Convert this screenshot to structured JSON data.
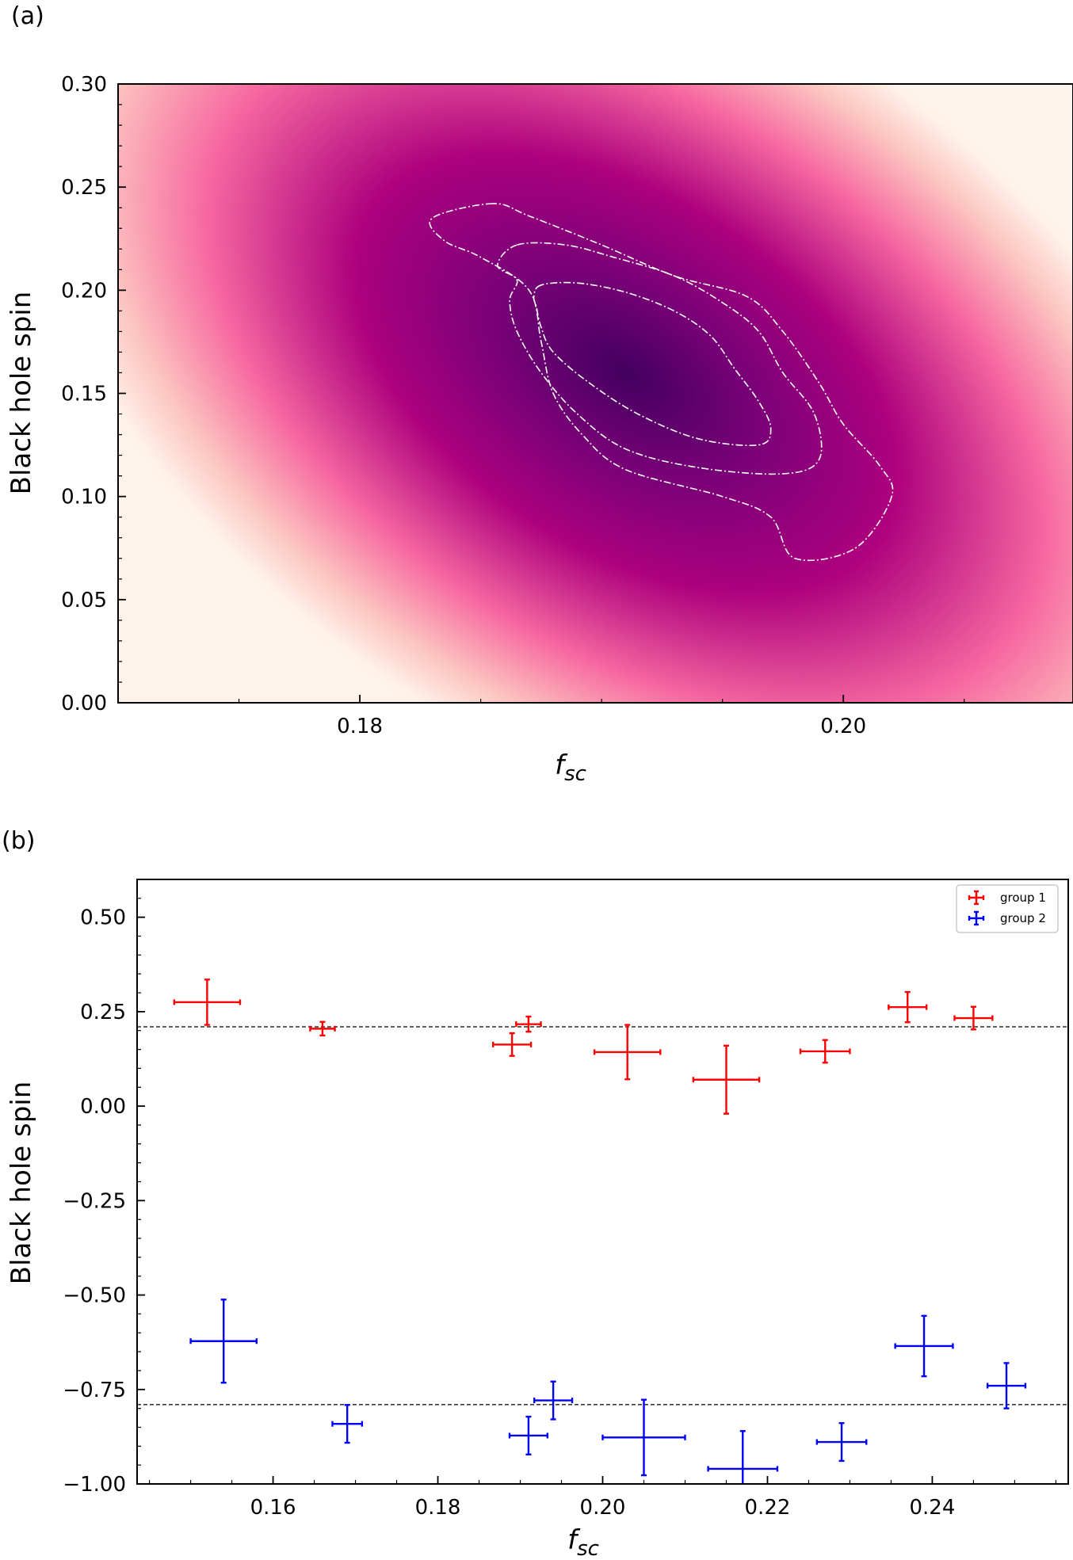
{
  "chart_data": [
    {
      "type": "heatmap",
      "panel_label": "(a)",
      "xlabel": "f",
      "xlabel_sub": "sc",
      "ylabel": "Black hole spin",
      "xlim": [
        0.17,
        0.2095
      ],
      "ylim": [
        0.0,
        0.3
      ],
      "xticks": [
        0.18,
        0.2
      ],
      "xtick_labels": [
        "0.18",
        "0.20"
      ],
      "yticks": [
        0.0,
        0.05,
        0.1,
        0.15,
        0.2,
        0.25,
        0.3
      ],
      "ytick_labels": [
        "0.00",
        "0.05",
        "0.10",
        "0.15",
        "0.20",
        "0.25",
        "0.30"
      ],
      "colormap": [
        "#43005f",
        "#7a0178",
        "#ae017e",
        "#f768a1",
        "#fcc5c0",
        "#fff3ea"
      ],
      "minimum": {
        "x": 0.191,
        "y": 0.16
      },
      "contours": [
        [
          [
            0.1875,
            0.2025
          ],
          [
            0.1872,
            0.197
          ],
          [
            0.1873,
            0.192
          ],
          [
            0.1875,
            0.182
          ],
          [
            0.188,
            0.17
          ],
          [
            0.1895,
            0.155
          ],
          [
            0.1915,
            0.14
          ],
          [
            0.194,
            0.128
          ],
          [
            0.1965,
            0.125
          ],
          [
            0.197,
            0.133
          ],
          [
            0.1965,
            0.146
          ],
          [
            0.1955,
            0.162
          ],
          [
            0.1945,
            0.178
          ],
          [
            0.193,
            0.19
          ],
          [
            0.191,
            0.199
          ],
          [
            0.189,
            0.2035
          ]
        ],
        [
          [
            0.1865,
            0.222
          ],
          [
            0.1857,
            0.212
          ],
          [
            0.1865,
            0.205
          ],
          [
            0.1862,
            0.195
          ],
          [
            0.1865,
            0.18
          ],
          [
            0.1875,
            0.16
          ],
          [
            0.189,
            0.14
          ],
          [
            0.191,
            0.123
          ],
          [
            0.194,
            0.114
          ],
          [
            0.1975,
            0.111
          ],
          [
            0.199,
            0.118
          ],
          [
            0.1988,
            0.14
          ],
          [
            0.1975,
            0.16
          ],
          [
            0.1965,
            0.18
          ],
          [
            0.195,
            0.194
          ],
          [
            0.193,
            0.207
          ],
          [
            0.1905,
            0.216
          ],
          [
            0.1885,
            0.222
          ]
        ],
        [
          [
            0.1855,
            0.242
          ],
          [
            0.183,
            0.235
          ],
          [
            0.1835,
            0.224
          ],
          [
            0.185,
            0.216
          ],
          [
            0.187,
            0.2
          ],
          [
            0.1875,
            0.175
          ],
          [
            0.188,
            0.15
          ],
          [
            0.1892,
            0.13
          ],
          [
            0.191,
            0.113
          ],
          [
            0.195,
            0.1
          ],
          [
            0.197,
            0.09
          ],
          [
            0.198,
            0.07
          ],
          [
            0.2005,
            0.075
          ],
          [
            0.202,
            0.1
          ],
          [
            0.2015,
            0.115
          ],
          [
            0.2,
            0.135
          ],
          [
            0.199,
            0.155
          ],
          [
            0.1975,
            0.18
          ],
          [
            0.196,
            0.197
          ],
          [
            0.193,
            0.207
          ],
          [
            0.19,
            0.222
          ],
          [
            0.187,
            0.236
          ]
        ]
      ]
    },
    {
      "type": "scatter",
      "panel_label": "(b)",
      "xlabel": "f",
      "xlabel_sub": "sc",
      "ylabel": "Black hole spin",
      "xlim": [
        0.1435,
        0.2565
      ],
      "ylim": [
        -1.0,
        0.6
      ],
      "xticks": [
        0.16,
        0.18,
        0.2,
        0.22,
        0.24
      ],
      "xtick_labels": [
        "0.16",
        "0.18",
        "0.20",
        "0.22",
        "0.24"
      ],
      "yticks": [
        0.5,
        0.25,
        0.0,
        -0.25,
        -0.5,
        -0.75,
        -1.0
      ],
      "ytick_labels": [
        "0.50",
        "0.25",
        "0.00",
        "−0.25",
        "−0.50",
        "−0.75",
        "−1.00"
      ],
      "hlines": [
        0.21,
        -0.79
      ],
      "legend_position": "top-right",
      "series": [
        {
          "name": "group 1",
          "color": "#ff0000",
          "points": [
            {
              "x": 0.152,
              "y": 0.275,
              "xerr": 0.004,
              "yerr": 0.06
            },
            {
              "x": 0.166,
              "y": 0.205,
              "xerr": 0.0015,
              "yerr": 0.018
            },
            {
              "x": 0.189,
              "y": 0.163,
              "xerr": 0.0023,
              "yerr": 0.03
            },
            {
              "x": 0.191,
              "y": 0.217,
              "xerr": 0.0015,
              "yerr": 0.02
            },
            {
              "x": 0.203,
              "y": 0.143,
              "xerr": 0.004,
              "yerr": 0.072
            },
            {
              "x": 0.215,
              "y": 0.07,
              "xerr": 0.004,
              "yerr": 0.09
            },
            {
              "x": 0.227,
              "y": 0.145,
              "xerr": 0.003,
              "yerr": 0.03
            },
            {
              "x": 0.237,
              "y": 0.262,
              "xerr": 0.0023,
              "yerr": 0.04
            },
            {
              "x": 0.245,
              "y": 0.233,
              "xerr": 0.0023,
              "yerr": 0.03
            }
          ]
        },
        {
          "name": "group 2",
          "color": "#0000ff",
          "points": [
            {
              "x": 0.154,
              "y": -0.622,
              "xerr": 0.004,
              "yerr": 0.11
            },
            {
              "x": 0.169,
              "y": -0.841,
              "xerr": 0.0018,
              "yerr": 0.05
            },
            {
              "x": 0.191,
              "y": -0.872,
              "xerr": 0.0023,
              "yerr": 0.05
            },
            {
              "x": 0.194,
              "y": -0.779,
              "xerr": 0.0023,
              "yerr": 0.05
            },
            {
              "x": 0.205,
              "y": -0.877,
              "xerr": 0.005,
              "yerr": 0.1
            },
            {
              "x": 0.217,
              "y": -0.96,
              "xerr": 0.0042,
              "yerr": 0.1
            },
            {
              "x": 0.229,
              "y": -0.889,
              "xerr": 0.003,
              "yerr": 0.05
            },
            {
              "x": 0.239,
              "y": -0.635,
              "xerr": 0.0035,
              "yerr": 0.08
            },
            {
              "x": 0.249,
              "y": -0.74,
              "xerr": 0.0023,
              "yerr": 0.06
            }
          ]
        }
      ]
    }
  ]
}
